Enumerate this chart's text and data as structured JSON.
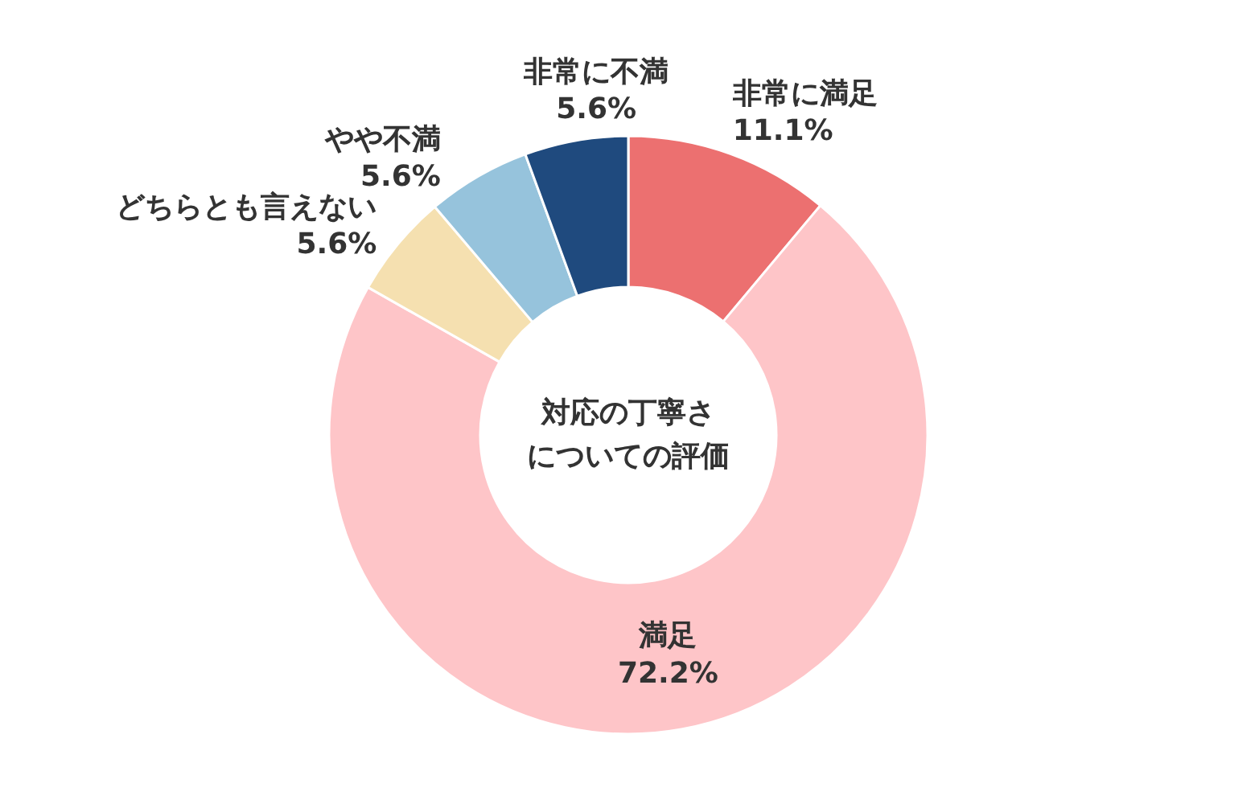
{
  "chart_data": {
    "type": "donut",
    "title": "対応の丁寧さについての評価",
    "categories": [
      "非常に満足",
      "満足",
      "どちらとも言えない",
      "やや不満",
      "非常に不満"
    ],
    "values": [
      11.1,
      72.2,
      5.6,
      5.6,
      5.6
    ],
    "colors": [
      "#ec7070",
      "#fec5c8",
      "#f5e0b0",
      "#96c3dc",
      "#1f4a7e"
    ],
    "value_labels": [
      "11.1%",
      "72.2%",
      "5.6%",
      "5.6%",
      "5.6%"
    ]
  }
}
